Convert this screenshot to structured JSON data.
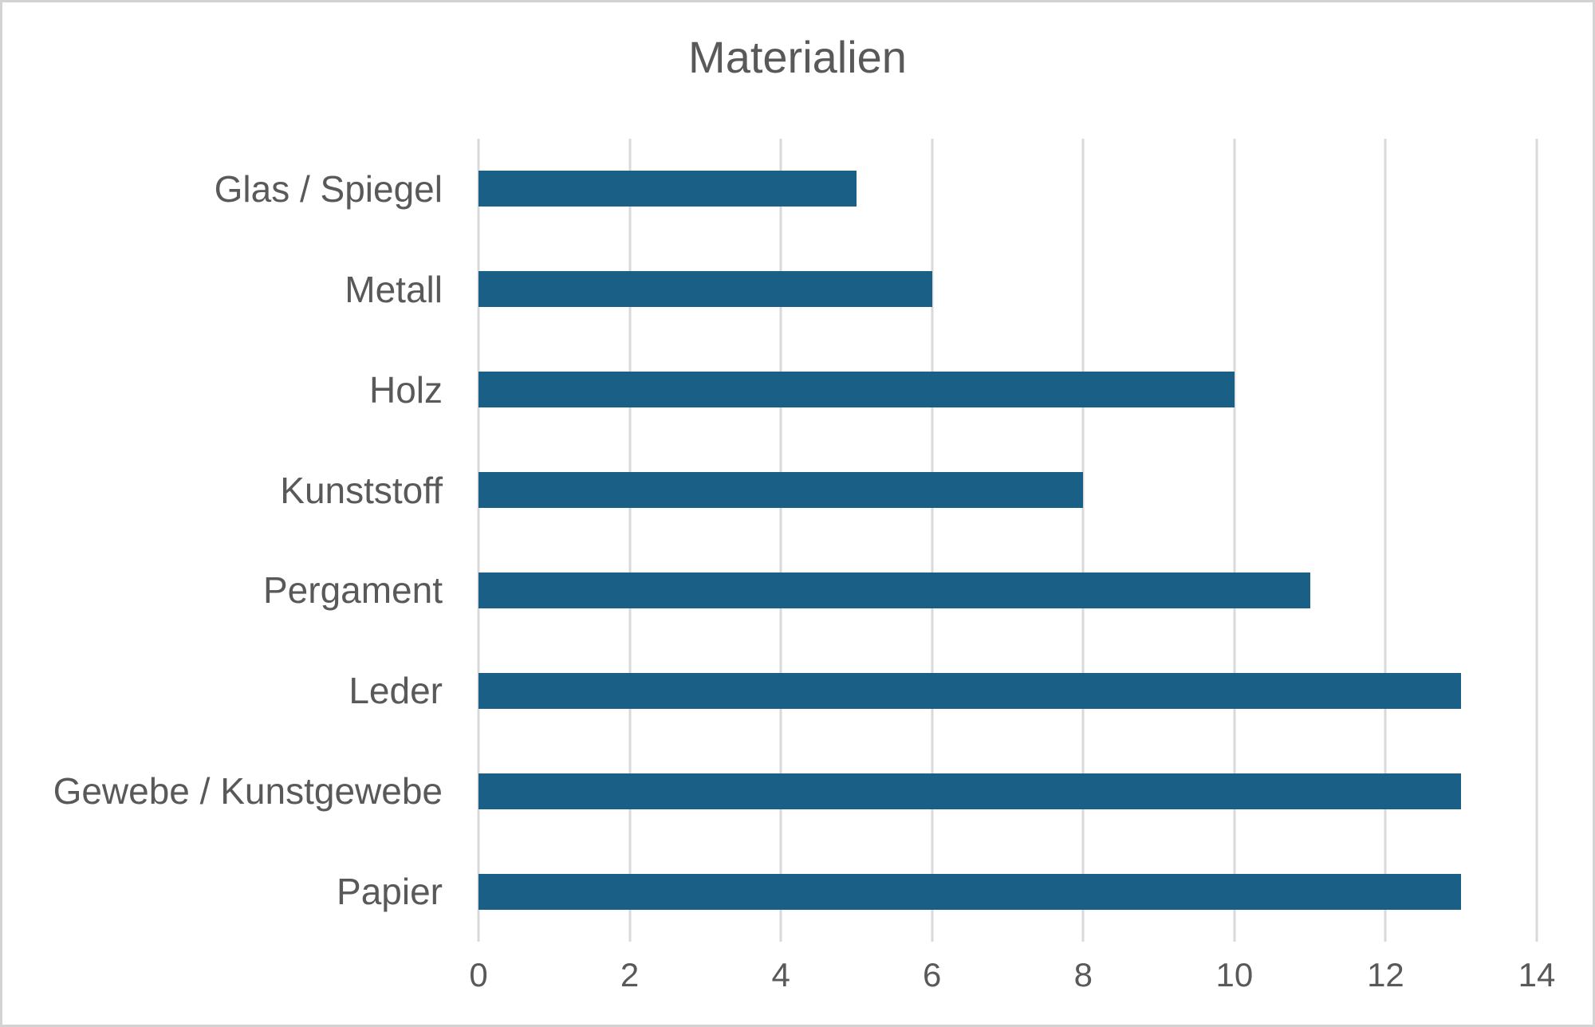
{
  "frame": {
    "background": "#ffffff",
    "border_color": "#d3d3d3"
  },
  "chart_data": {
    "type": "bar",
    "orientation": "horizontal",
    "title": "Materialien",
    "categories": [
      "Glas / Spiegel",
      "Metall",
      "Holz",
      "Kunststoff",
      "Pergament",
      "Leder",
      "Gewebe / Kunstgewebe",
      "Papier"
    ],
    "values": [
      5,
      6,
      10,
      8,
      11,
      13,
      13,
      13
    ],
    "xlabel": "",
    "ylabel": "",
    "xlim": [
      0,
      14
    ],
    "x_ticks": [
      0,
      2,
      4,
      6,
      8,
      10,
      12,
      14
    ],
    "grid": "vertical-only",
    "legend": "none",
    "bar_color": "#1A6086",
    "text_color": "#595959",
    "gridline_color": "#D9D9D9"
  }
}
